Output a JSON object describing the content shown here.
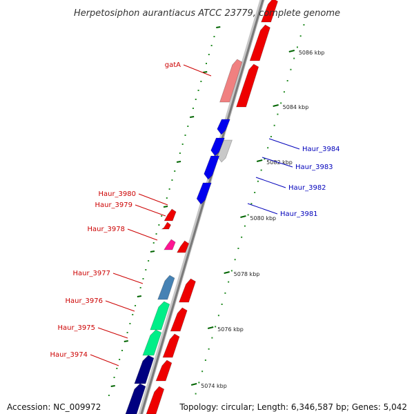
{
  "title": "Herpetosiphon aurantiacus ATCC 23779, complete genome",
  "footer": {
    "accession": "Accession: NC_009972",
    "summary": "Topology: circular; Length: 6,346,587 bp; Genes: 5,042"
  },
  "colors": {
    "backbone": "#999999",
    "tick_minor": "#228B22",
    "tick_major": "#006400",
    "forward_label": "#cc0000",
    "reverse_label": "#0000bb"
  },
  "ticks": {
    "major_labels": [
      "5074 kbp",
      "5076 kbp",
      "5078 kbp",
      "5080 kbp",
      "5082 kbp",
      "5084 kbp",
      "5086 kbp"
    ]
  },
  "genes": [
    {
      "name": "gatA",
      "color": "#f08080",
      "strand": "+"
    },
    {
      "name": "Haur_3984",
      "color": "#0000ee",
      "strand": "-"
    },
    {
      "name": "Haur_3983",
      "color": "#c8c8c8",
      "strand": "-"
    },
    {
      "name": "Haur_3982",
      "color": "#0000ee",
      "strand": "-"
    },
    {
      "name": "Haur_3981",
      "color": "#0000ee",
      "strand": "-"
    },
    {
      "name": "Haur_3980",
      "color": "#ee0000",
      "strand": "+"
    },
    {
      "name": "Haur_3979",
      "color": "#ee0000",
      "strand": "+"
    },
    {
      "name": "Haur_3978",
      "color": "#ff1493",
      "strand": "+"
    },
    {
      "name": "Haur_3977",
      "color": "#4682b4",
      "strand": "+"
    },
    {
      "name": "Haur_3976",
      "color": "#00ee88",
      "strand": "+"
    },
    {
      "name": "Haur_3975",
      "color": "#00ee88",
      "strand": "+"
    },
    {
      "name": "Haur_3974",
      "color": "#000080",
      "strand": "+"
    }
  ]
}
